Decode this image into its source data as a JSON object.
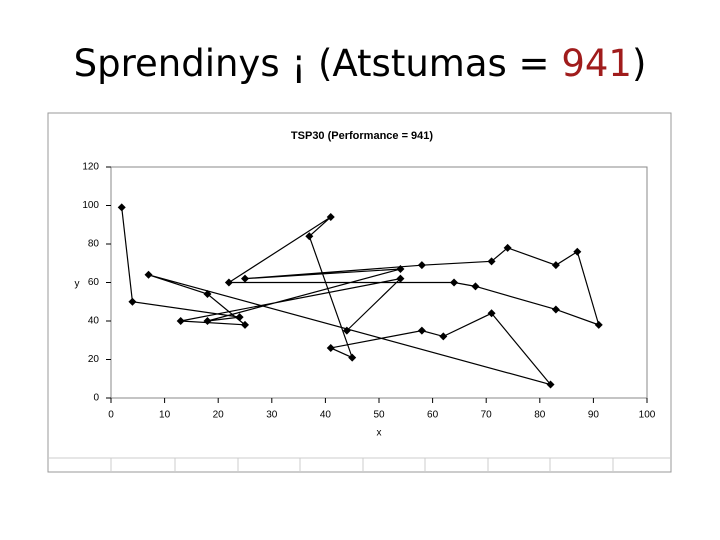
{
  "slide_title": {
    "prefix": "Sprendinys ¡ (Atstumas = ",
    "highlight": "941",
    "suffix": ")"
  },
  "chart_data": {
    "type": "line",
    "title": "TSP30 (Performance  =  941)",
    "x_label": "x",
    "y_label": "y",
    "x": [
      2,
      4,
      24,
      18,
      54,
      25,
      58,
      71,
      74,
      83,
      87,
      91,
      83,
      68,
      64,
      22,
      41,
      37,
      45,
      41,
      58,
      62,
      71,
      82,
      7,
      18,
      25,
      13,
      54,
      44
    ],
    "series": [
      {
        "color": "#000000",
        "values": [
          99,
          50,
          42,
          40,
          67,
          62,
          69,
          71,
          78,
          69,
          76,
          38,
          46,
          58,
          60,
          60,
          94,
          84,
          21,
          26,
          35,
          32,
          44,
          7,
          64,
          54,
          38,
          40,
          62,
          35
        ]
      }
    ],
    "xlim": [
      0,
      100
    ],
    "ylim": [
      0,
      120
    ],
    "xticks": [
      0,
      10,
      20,
      30,
      40,
      50,
      60,
      70,
      80,
      90,
      100
    ],
    "yticks": [
      0,
      20,
      40,
      60,
      80,
      100,
      120
    ]
  }
}
